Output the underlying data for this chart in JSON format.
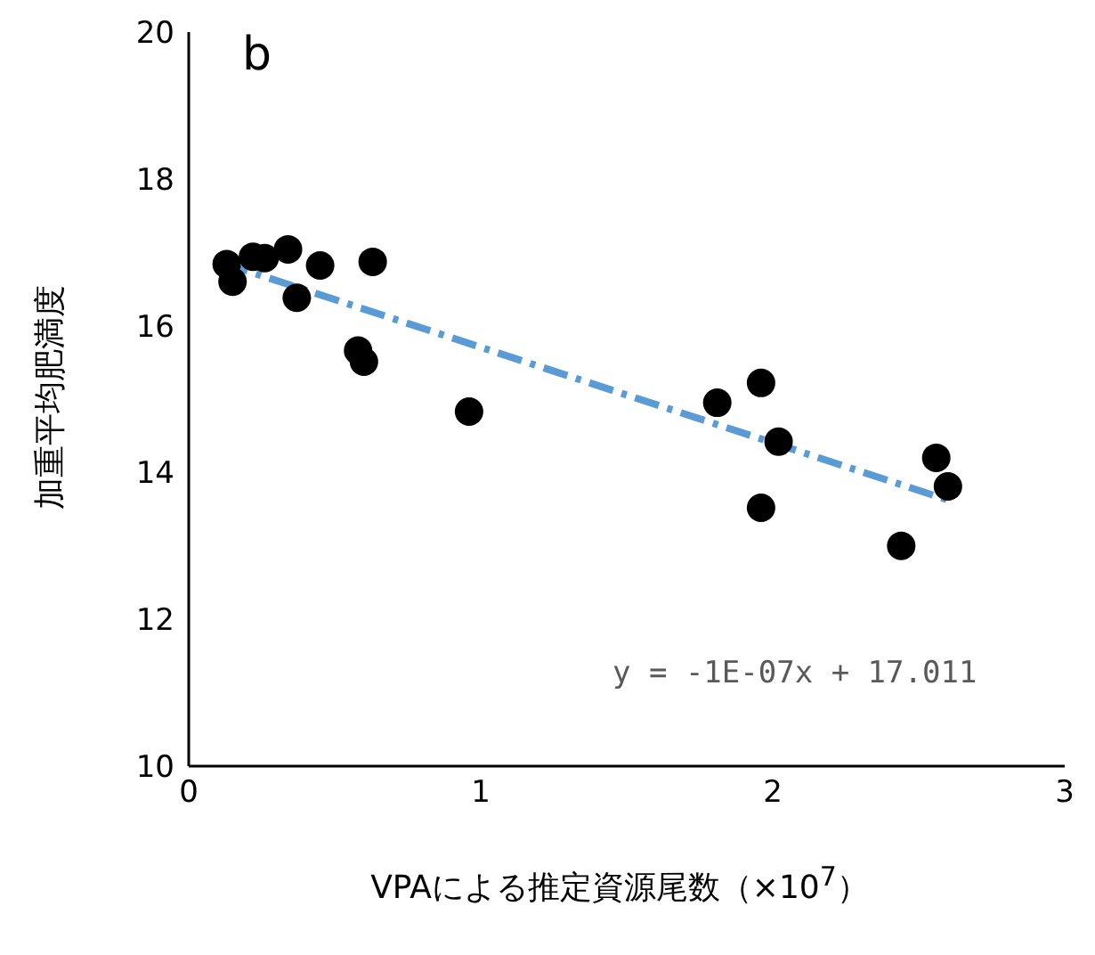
{
  "chart_data": {
    "type": "scatter",
    "xlabel": "VPAによる推定資源尾数（×10$^{7}$）",
    "ylabel": "加重平均肥満度",
    "annotations": [
      "b",
      "y = -1E-07x + 17.011"
    ],
    "xlim": [
      0,
      3
    ],
    "xticks": [
      0,
      1,
      2,
      3
    ],
    "ylim": [
      10,
      20
    ],
    "yticks": [
      10,
      12,
      14,
      16,
      18,
      20
    ],
    "grid": false,
    "legend": false,
    "marker": "circle",
    "series": [
      {
        "color": "#000000",
        "x": [
          0.13,
          0.15,
          0.22,
          0.26,
          0.34,
          0.37,
          0.45,
          0.63,
          0.58,
          0.6,
          0.96,
          1.81,
          1.96,
          2.02,
          1.96,
          2.44,
          2.56,
          2.6
        ],
        "values": [
          16.84,
          16.6,
          16.94,
          16.92,
          17.04,
          16.38,
          16.82,
          16.87,
          15.66,
          15.51,
          14.83,
          14.95,
          15.22,
          14.42,
          13.52,
          13.0,
          14.2,
          13.81
        ]
      },
      {
        "type": "line",
        "color": "#5b9bd5",
        "line_style": "dashed",
        "marker": "none",
        "x": [
          0.12,
          2.62
        ],
        "values": [
          16.85,
          13.6
        ]
      }
    ]
  }
}
